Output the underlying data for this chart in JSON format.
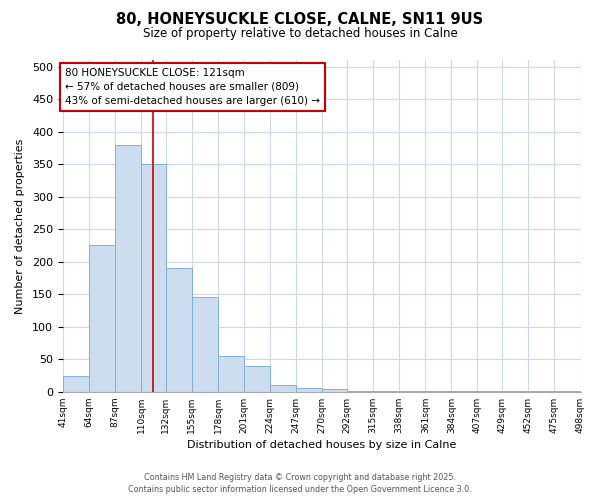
{
  "title1": "80, HONEYSUCKLE CLOSE, CALNE, SN11 9US",
  "title2": "Size of property relative to detached houses in Calne",
  "xlabel": "Distribution of detached houses by size in Calne",
  "ylabel": "Number of detached properties",
  "bar_edges": [
    41,
    64,
    87,
    110,
    132,
    155,
    178,
    201,
    224,
    247,
    270,
    292,
    315,
    338,
    361,
    384,
    407,
    429,
    452,
    475,
    498
  ],
  "bar_heights": [
    25,
    225,
    380,
    350,
    190,
    145,
    55,
    40,
    10,
    6,
    4,
    1,
    1,
    1,
    1,
    1,
    1,
    2,
    1,
    2
  ],
  "bar_color": "#ccddef",
  "bar_edgecolor": "#7fb2d8",
  "redline_x": 121,
  "redline_color": "#cc0000",
  "annotation_text": "80 HONEYSUCKLE CLOSE: 121sqm\n← 57% of detached houses are smaller (809)\n43% of semi-detached houses are larger (610) →",
  "annotation_box_facecolor": "#ffffff",
  "annotation_box_edgecolor": "#cc0000",
  "ylim": [
    0,
    510
  ],
  "yticks": [
    0,
    50,
    100,
    150,
    200,
    250,
    300,
    350,
    400,
    450,
    500
  ],
  "grid_color": "#d0d8e8",
  "background_color": "#ffffff",
  "footer_text": "Contains HM Land Registry data © Crown copyright and database right 2025.\nContains public sector information licensed under the Open Government Licence 3.0."
}
